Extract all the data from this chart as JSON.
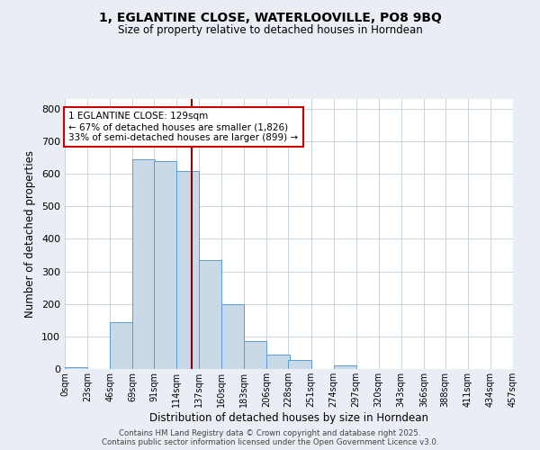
{
  "title1": "1, EGLANTINE CLOSE, WATERLOOVILLE, PO8 9BQ",
  "title2": "Size of property relative to detached houses in Horndean",
  "xlabel": "Distribution of detached houses by size in Horndean",
  "ylabel": "Number of detached properties",
  "bin_labels": [
    "0sqm",
    "23sqm",
    "46sqm",
    "69sqm",
    "91sqm",
    "114sqm",
    "137sqm",
    "160sqm",
    "183sqm",
    "206sqm",
    "228sqm",
    "251sqm",
    "274sqm",
    "297sqm",
    "320sqm",
    "343sqm",
    "366sqm",
    "388sqm",
    "411sqm",
    "434sqm",
    "457sqm"
  ],
  "bar_values": [
    5,
    0,
    145,
    645,
    640,
    610,
    335,
    200,
    85,
    43,
    27,
    0,
    12,
    0,
    0,
    0,
    0,
    0,
    0,
    0,
    0
  ],
  "bar_color": "#c9d9e8",
  "bar_edge_color": "#5b9bd5",
  "vline_x": 129,
  "vline_color": "#8b0000",
  "annotation_title": "1 EGLANTINE CLOSE: 129sqm",
  "annotation_line1": "← 67% of detached houses are smaller (1,826)",
  "annotation_line2": "33% of semi-detached houses are larger (899) →",
  "annotation_box_color": "#ffffff",
  "annotation_box_edge": "#cc0000",
  "ylim": [
    0,
    830
  ],
  "yticks": [
    0,
    100,
    200,
    300,
    400,
    500,
    600,
    700,
    800
  ],
  "bin_edges": [
    0,
    23,
    46,
    69,
    91,
    114,
    137,
    160,
    183,
    206,
    228,
    251,
    274,
    297,
    320,
    343,
    366,
    388,
    411,
    434,
    457
  ],
  "footer1": "Contains HM Land Registry data © Crown copyright and database right 2025.",
  "footer2": "Contains public sector information licensed under the Open Government Licence v3.0.",
  "bg_color": "#e8eef4",
  "plot_bg_color": "#ffffff",
  "grid_color": "#c8d4de"
}
